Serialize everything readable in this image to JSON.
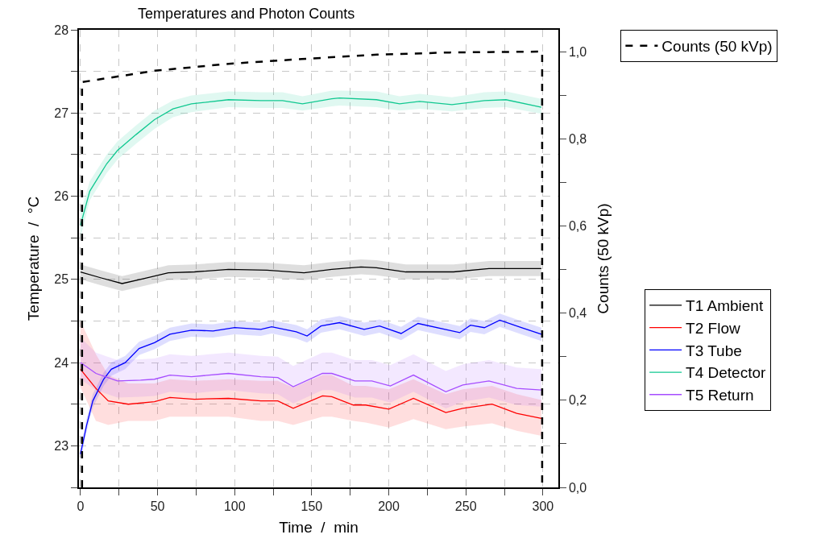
{
  "chart_data": {
    "type": "line",
    "title": "Temperatures and Photon Counts",
    "xlabel": "Time  /  min",
    "ylabel": "Temperature  /  °C",
    "y2label": "Counts (50 kVp)",
    "xlim": [
      -1,
      310
    ],
    "xticks": [
      0,
      {
        "value": 25,
        "label": null
      },
      50,
      {
        "value": 75,
        "label": null
      },
      100,
      {
        "value": 125,
        "label": null
      },
      150,
      {
        "value": 175,
        "label": null
      },
      200,
      {
        "value": 225,
        "label": null
      },
      250,
      {
        "value": 275,
        "label": null
      },
      300
    ],
    "ylim": [
      22.5,
      28
    ],
    "yticks": [
      {
        "value": 22.5,
        "label": null
      },
      23,
      {
        "value": 23.5,
        "label": null
      },
      24,
      {
        "value": 24.5,
        "label": null
      },
      25,
      {
        "value": 25.5,
        "label": null
      },
      26,
      {
        "value": 26.5,
        "label": null
      },
      27,
      {
        "value": 27.5,
        "label": null
      },
      28
    ],
    "y2lim": [
      0,
      1.05
    ],
    "y2ticks": [
      {
        "value": 0,
        "label": "0,0"
      },
      {
        "value": 0.1,
        "label": null
      },
      {
        "value": 0.2,
        "label": "0,2"
      },
      {
        "value": 0.3,
        "label": null
      },
      {
        "value": 0.4,
        "label": "0,4"
      },
      {
        "value": 0.5,
        "label": null
      },
      {
        "value": 0.6,
        "label": "0,6"
      },
      {
        "value": 0.7,
        "label": null
      },
      {
        "value": 0.8,
        "label": "0,8"
      },
      {
        "value": 0.9,
        "label": null
      },
      {
        "value": 1.0,
        "label": "1,0"
      }
    ],
    "grid": true,
    "legend": "right",
    "marker": "none",
    "line_style": "solid",
    "series": [
      {
        "name": "Counts (50 kVp)",
        "color": "#000000",
        "axis": "y2",
        "line_style": "dashed",
        "x": [
          1,
          1,
          48,
          96,
          143.5,
          192.5,
          239.5,
          297,
          299.5,
          299.5
        ],
        "values": [
          0,
          0.93,
          0.956,
          0.972,
          0.983,
          0.993,
          0.998,
          1.0,
          1.0,
          0
        ]
      },
      {
        "name": "T1 Ambient",
        "color": "#000000",
        "x": [
          0,
          13,
          27,
          41,
          57,
          74,
          96,
          121,
          145,
          163,
          182,
          192,
          211,
          242,
          265,
          299
        ],
        "values": [
          25.09,
          25.02,
          24.95,
          25.01,
          25.08,
          25.09,
          25.12,
          25.11,
          25.08,
          25.12,
          25.15,
          25.14,
          25.09,
          25.09,
          25.13,
          25.13
        ],
        "lower": [
          25.0,
          24.93,
          24.86,
          24.92,
          24.99,
          25.0,
          25.03,
          25.02,
          24.99,
          25.03,
          25.06,
          25.05,
          25.0,
          25.0,
          25.04,
          25.04
        ],
        "upper": [
          25.18,
          25.11,
          25.04,
          25.1,
          25.17,
          25.18,
          25.21,
          25.2,
          25.17,
          25.21,
          25.24,
          25.23,
          25.18,
          25.18,
          25.22,
          25.22
        ]
      },
      {
        "name": "T2 Flow",
        "color": "#ff0000",
        "x": [
          0,
          10,
          18,
          31,
          48,
          58,
          74,
          96,
          117,
          128,
          138,
          157,
          163,
          177,
          185,
          200,
          216,
          237,
          248,
          267,
          283,
          299
        ],
        "values": [
          23.92,
          23.69,
          23.54,
          23.5,
          23.53,
          23.58,
          23.56,
          23.57,
          23.54,
          23.54,
          23.45,
          23.6,
          23.59,
          23.49,
          23.49,
          23.44,
          23.57,
          23.4,
          23.45,
          23.5,
          23.39,
          23.33
        ],
        "lower": [
          23.7,
          23.3,
          23.25,
          23.3,
          23.3,
          23.35,
          23.35,
          23.35,
          23.3,
          23.3,
          23.25,
          23.35,
          23.35,
          23.3,
          23.28,
          23.22,
          23.32,
          23.2,
          23.23,
          23.27,
          23.18,
          23.12
        ],
        "upper": [
          24.5,
          24.1,
          23.85,
          23.75,
          23.75,
          23.8,
          23.78,
          23.8,
          23.78,
          23.78,
          23.7,
          23.85,
          23.85,
          23.72,
          23.72,
          23.68,
          23.8,
          23.62,
          23.68,
          23.72,
          23.62,
          23.55
        ]
      },
      {
        "name": "T3 Tube",
        "color": "#0000ff",
        "x": [
          0,
          4,
          8,
          15,
          20,
          29,
          38,
          48,
          58,
          72,
          86,
          100,
          117,
          124,
          140,
          147,
          156,
          168,
          184,
          194,
          208,
          219,
          246,
          253,
          262,
          272,
          286,
          299
        ],
        "values": [
          22.9,
          23.25,
          23.54,
          23.8,
          23.92,
          24.0,
          24.17,
          24.24,
          24.34,
          24.39,
          24.38,
          24.42,
          24.4,
          24.43,
          24.37,
          24.32,
          24.44,
          24.48,
          24.4,
          24.44,
          24.35,
          24.47,
          24.36,
          24.45,
          24.42,
          24.51,
          24.42,
          24.34
        ],
        "lower": [
          22.82,
          23.17,
          23.46,
          23.72,
          23.84,
          23.92,
          24.09,
          24.16,
          24.26,
          24.31,
          24.3,
          24.34,
          24.32,
          24.35,
          24.29,
          24.24,
          24.36,
          24.4,
          24.32,
          24.36,
          24.27,
          24.39,
          24.28,
          24.37,
          24.34,
          24.43,
          24.34,
          24.26
        ],
        "upper": [
          22.98,
          23.33,
          23.62,
          23.88,
          24.0,
          24.08,
          24.25,
          24.32,
          24.42,
          24.47,
          24.46,
          24.5,
          24.48,
          24.51,
          24.45,
          24.4,
          24.52,
          24.56,
          24.48,
          24.52,
          24.43,
          24.55,
          24.44,
          24.53,
          24.5,
          24.59,
          24.5,
          24.42
        ]
      },
      {
        "name": "T4 Detector",
        "color": "#10c890",
        "x": [
          0,
          6,
          17,
          24,
          36,
          48,
          60,
          72,
          96,
          117,
          131,
          144,
          163,
          168,
          192,
          207,
          220,
          241,
          262,
          276,
          299
        ],
        "values": [
          25.65,
          26.06,
          26.39,
          26.55,
          26.74,
          26.92,
          27.05,
          27.11,
          27.16,
          27.15,
          27.15,
          27.11,
          27.17,
          27.18,
          27.16,
          27.11,
          27.14,
          27.1,
          27.15,
          27.16,
          27.07
        ],
        "lower": [
          25.5,
          25.95,
          26.28,
          26.44,
          26.63,
          26.81,
          26.95,
          27.01,
          27.07,
          27.06,
          27.06,
          27.03,
          27.08,
          27.09,
          27.07,
          27.03,
          27.05,
          27.02,
          27.06,
          27.07,
          26.99
        ],
        "upper": [
          25.8,
          26.18,
          26.5,
          26.66,
          26.85,
          27.03,
          27.15,
          27.21,
          27.26,
          27.25,
          27.25,
          27.2,
          27.27,
          27.27,
          27.26,
          27.2,
          27.23,
          27.19,
          27.25,
          27.26,
          27.17
        ]
      },
      {
        "name": "T5 Return",
        "color": "#a64dff",
        "x": [
          0,
          10,
          24,
          39,
          48,
          58,
          72,
          96,
          117,
          128,
          138,
          157,
          163,
          178,
          189,
          201,
          216,
          237,
          248,
          265,
          283,
          299
        ],
        "values": [
          24.0,
          23.87,
          23.78,
          23.79,
          23.8,
          23.85,
          23.83,
          23.87,
          23.83,
          23.82,
          23.71,
          23.87,
          23.87,
          23.78,
          23.78,
          23.72,
          23.85,
          23.65,
          23.73,
          23.78,
          23.69,
          23.67
        ],
        "lower": [
          23.8,
          23.67,
          23.58,
          23.59,
          23.6,
          23.65,
          23.63,
          23.67,
          23.63,
          23.62,
          23.51,
          23.67,
          23.67,
          23.58,
          23.58,
          23.52,
          23.65,
          23.45,
          23.53,
          23.58,
          23.49,
          23.47
        ],
        "upper": [
          24.3,
          24.12,
          24.03,
          24.04,
          24.05,
          24.1,
          24.08,
          24.12,
          24.08,
          24.07,
          23.96,
          24.12,
          24.12,
          24.03,
          24.03,
          23.97,
          24.1,
          23.9,
          23.98,
          24.03,
          23.94,
          23.92
        ]
      }
    ]
  }
}
